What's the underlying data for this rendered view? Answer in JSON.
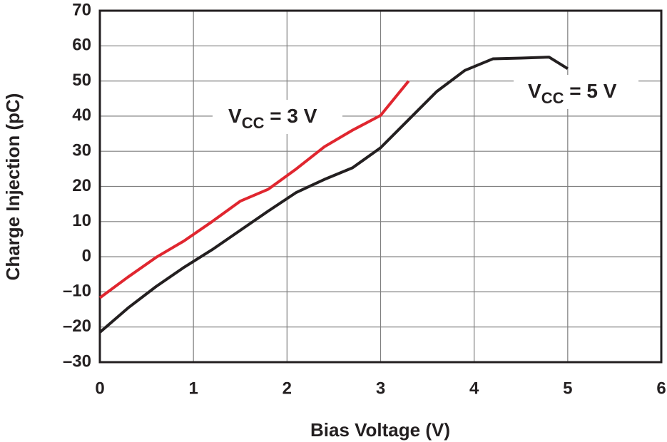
{
  "chart_data": {
    "type": "line",
    "x_label": "Bias Voltage (V)",
    "y_label": "Charge Injection (pC)",
    "xlim": [
      0,
      6
    ],
    "xticks": [
      0,
      1,
      2,
      3,
      4,
      5,
      6
    ],
    "ylim": [
      -30,
      70
    ],
    "yticks": [
      {
        "value": -30,
        "label": "–30"
      },
      {
        "value": -20,
        "label": "–20"
      },
      {
        "value": -10,
        "label": "–10"
      },
      0,
      10,
      20,
      30,
      40,
      50,
      60,
      70
    ],
    "grid": true,
    "series": [
      {
        "color": "#231f20",
        "x": [
          0,
          0.3,
          0.6,
          0.9,
          1.2,
          1.5,
          1.8,
          2.1,
          2.4,
          2.7,
          3.0,
          3.3,
          3.6,
          3.9,
          4.2,
          4.5,
          4.8,
          5.0
        ],
        "values": [
          -21.5,
          -14.6,
          -8.5,
          -3,
          2,
          7.5,
          13,
          18.3,
          22,
          25.3,
          31,
          39,
          47,
          53,
          56.3,
          56.5,
          56.8,
          53.5
        ]
      },
      {
        "color": "#e0262f",
        "x": [
          0,
          0.3,
          0.6,
          0.9,
          1.2,
          1.5,
          1.8,
          2.1,
          2.4,
          2.7,
          3.0,
          3.3
        ],
        "values": [
          -11.7,
          -5.8,
          -0.2,
          4.5,
          10,
          15.8,
          19.2,
          25,
          31.3,
          36,
          40.2,
          50
        ]
      }
    ],
    "annotations": [
      {
        "parts": [
          "V",
          "CC",
          " = 3 V"
        ]
      },
      {
        "parts": [
          "V",
          "CC",
          " = 5 V"
        ]
      }
    ]
  }
}
